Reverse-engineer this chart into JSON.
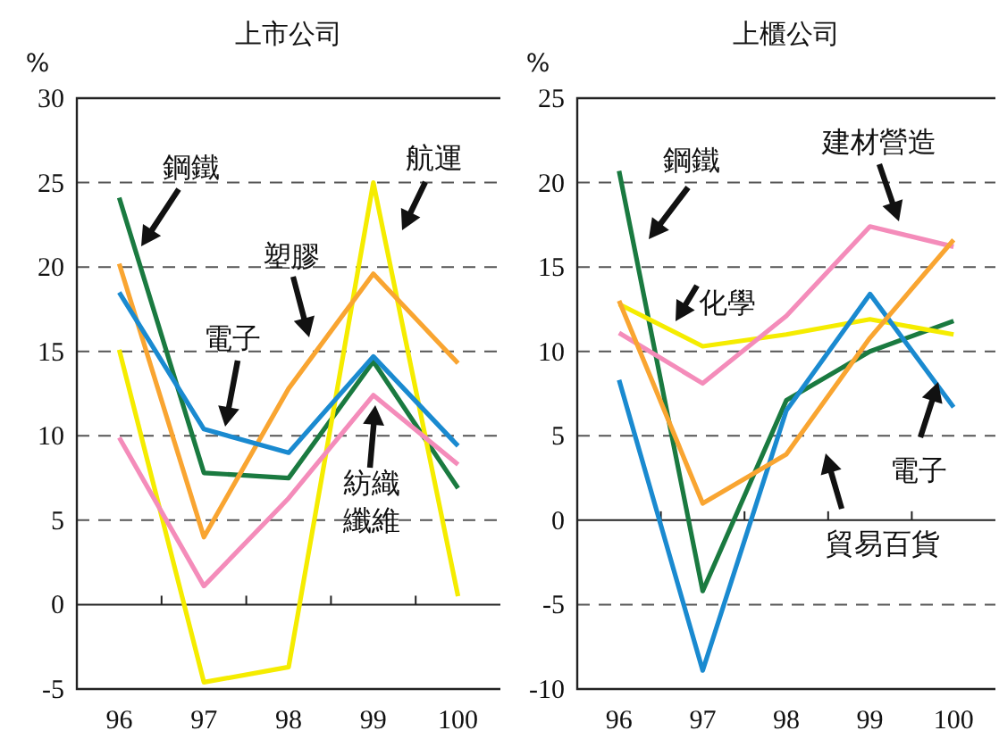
{
  "chart_data": [
    {
      "type": "line",
      "title": "上市公司",
      "ylabel": "%",
      "categories": [
        "96",
        "97",
        "98",
        "99",
        "100"
      ],
      "ylim": [
        -5,
        30
      ],
      "yticks": [
        -5,
        0,
        5,
        10,
        15,
        20,
        25,
        30
      ],
      "grid": "y",
      "series": [
        {
          "name": "鋼鐵",
          "color": "#1a7a40",
          "values": [
            24.1,
            7.8,
            7.5,
            14.4,
            6.9
          ]
        },
        {
          "name": "航運",
          "color": "#f5ec00",
          "values": [
            15.1,
            -4.6,
            -3.7,
            25.0,
            0.5
          ]
        },
        {
          "name": "塑膠",
          "color": "#f9a531",
          "values": [
            20.2,
            4.0,
            12.8,
            19.6,
            14.3
          ]
        },
        {
          "name": "電子",
          "color": "#1a8ad0",
          "values": [
            18.5,
            10.4,
            9.0,
            14.7,
            9.4
          ]
        },
        {
          "name": "紡織纖維",
          "color": "#f48cba",
          "values": [
            9.9,
            1.1,
            6.3,
            12.4,
            8.3
          ]
        }
      ]
    },
    {
      "type": "line",
      "title": "上櫃公司",
      "ylabel": "%",
      "categories": [
        "96",
        "97",
        "98",
        "99",
        "100"
      ],
      "ylim": [
        -10,
        25
      ],
      "yticks": [
        -10,
        -5,
        0,
        5,
        10,
        15,
        20,
        25
      ],
      "grid": "y",
      "series": [
        {
          "name": "鋼鐵",
          "color": "#1a7a40",
          "values": [
            20.7,
            -4.2,
            7.1,
            10.0,
            11.8
          ]
        },
        {
          "name": "化學",
          "color": "#f5ec00",
          "values": [
            12.8,
            10.3,
            11.0,
            11.9,
            11.0
          ]
        },
        {
          "name": "建材營造",
          "color": "#f48cba",
          "values": [
            11.1,
            8.1,
            12.1,
            17.4,
            16.2
          ]
        },
        {
          "name": "電子",
          "color": "#1a8ad0",
          "values": [
            8.3,
            -8.9,
            6.5,
            13.4,
            6.7
          ]
        },
        {
          "name": "貿易百貨",
          "color": "#f9a531",
          "values": [
            13.0,
            1.0,
            3.9,
            10.8,
            16.6
          ]
        }
      ]
    }
  ]
}
